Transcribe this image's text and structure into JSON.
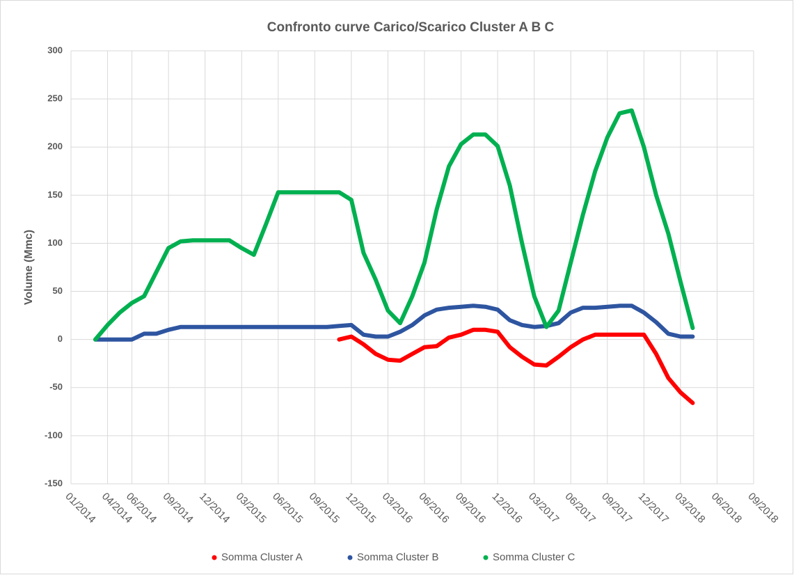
{
  "chart_data": {
    "type": "line",
    "title": "Confronto curve Carico/Scarico  Cluster A B C",
    "y_label": "Volume (Mmc)",
    "x": [
      "03/2014",
      "04/2014",
      "05/2014",
      "06/2014",
      "07/2014",
      "08/2014",
      "09/2014",
      "10/2014",
      "11/2014",
      "12/2014",
      "01/2015",
      "02/2015",
      "03/2015",
      "04/2015",
      "05/2015",
      "06/2015",
      "07/2015",
      "08/2015",
      "09/2015",
      "10/2015",
      "11/2015",
      "12/2015",
      "01/2016",
      "02/2016",
      "03/2016",
      "04/2016",
      "05/2016",
      "06/2016",
      "07/2016",
      "08/2016",
      "09/2016",
      "10/2016",
      "11/2016",
      "12/2016",
      "01/2017",
      "02/2017",
      "03/2017",
      "04/2017",
      "05/2017",
      "06/2017",
      "07/2017",
      "08/2017",
      "09/2017",
      "10/2017",
      "11/2017",
      "12/2017",
      "01/2018",
      "02/2018",
      "03/2018",
      "04/2018"
    ],
    "series": [
      {
        "name": "Somma Cluster A",
        "color": "#ff0000",
        "values": [
          null,
          null,
          null,
          null,
          null,
          null,
          null,
          null,
          null,
          null,
          null,
          null,
          null,
          null,
          null,
          null,
          null,
          null,
          null,
          null,
          0,
          3,
          -5,
          -15,
          -21,
          -22,
          -15,
          -8,
          -7,
          2,
          5,
          10,
          10,
          8,
          -8,
          -18,
          -26,
          -27,
          -18,
          -8,
          0,
          5,
          5,
          5,
          5,
          5,
          -15,
          -40,
          -55,
          -66
        ]
      },
      {
        "name": "Somma Cluster B",
        "color": "#2e55a0",
        "values": [
          0,
          0,
          0,
          0,
          6,
          6,
          10,
          13,
          13,
          13,
          13,
          13,
          13,
          13,
          13,
          13,
          13,
          13,
          13,
          13,
          14,
          15,
          5,
          3,
          3,
          8,
          15,
          25,
          31,
          33,
          34,
          35,
          34,
          31,
          20,
          15,
          13,
          14,
          17,
          28,
          33,
          33,
          34,
          35,
          35,
          28,
          18,
          6,
          3,
          3
        ]
      },
      {
        "name": "Somma Cluster C",
        "color": "#00b050",
        "values": [
          0,
          15,
          28,
          38,
          45,
          70,
          95,
          102,
          103,
          103,
          103,
          103,
          95,
          88,
          120,
          153,
          153,
          153,
          153,
          153,
          153,
          145,
          90,
          62,
          30,
          17,
          45,
          80,
          135,
          180,
          203,
          213,
          213,
          201,
          160,
          100,
          45,
          13,
          30,
          80,
          130,
          175,
          210,
          235,
          238,
          200,
          150,
          110,
          60,
          12
        ]
      }
    ],
    "xlim": [
      "01/2014",
      "09/2018"
    ],
    "xticks": [
      "01/2014",
      "04/2014",
      "06/2014",
      "09/2014",
      "12/2014",
      "03/2015",
      "06/2015",
      "09/2015",
      "12/2015",
      "03/2016",
      "06/2016",
      "09/2016",
      "12/2016",
      "03/2017",
      "06/2017",
      "09/2017",
      "12/2017",
      "03/2018",
      "06/2018",
      "09/2018"
    ],
    "ylim": [
      -150,
      300
    ],
    "yticks": [
      -150,
      -100,
      -50,
      0,
      50,
      100,
      150,
      200,
      250,
      300
    ],
    "grid": true,
    "legend": "bottom"
  }
}
